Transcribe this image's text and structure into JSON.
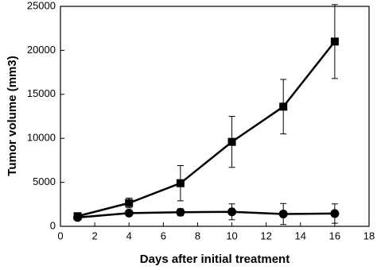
{
  "chart_data": {
    "type": "line",
    "x_label": "Days after initial treatment",
    "y_label": "Tumor volume (mm3)",
    "x": [
      1,
      4,
      7,
      10,
      13,
      16
    ],
    "series": [
      {
        "color": "#000000",
        "marker": "square",
        "values": [
          1150,
          2650,
          4900,
          9600,
          13600,
          21000
        ],
        "errors": [
          200,
          550,
          2000,
          2900,
          3100,
          4200
        ]
      },
      {
        "color": "#000000",
        "marker": "circle",
        "values": [
          1000,
          1500,
          1600,
          1650,
          1400,
          1450
        ],
        "errors": [
          200,
          300,
          400,
          900,
          1200,
          1100
        ]
      }
    ],
    "xlim": [
      0,
      18
    ],
    "xticks": [
      0,
      2,
      4,
      6,
      8,
      10,
      12,
      14,
      16,
      18
    ],
    "ylim": [
      0,
      25000
    ],
    "yticks": [
      0,
      5000,
      10000,
      15000,
      20000,
      25000
    ],
    "grid": false
  }
}
